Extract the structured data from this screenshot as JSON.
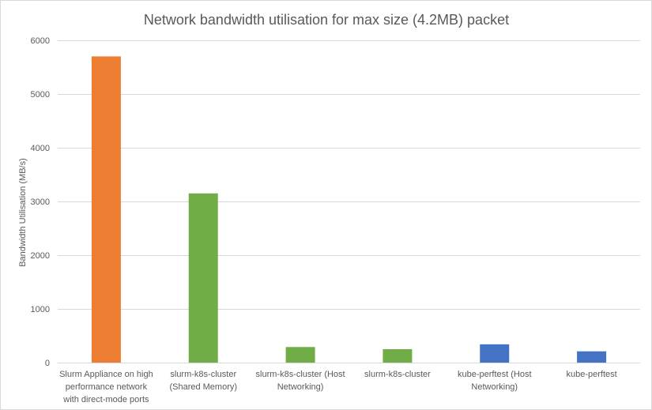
{
  "chart_data": {
    "type": "bar",
    "title": "Network bandwidth utilisation for max size (4.2MB) packet",
    "xlabel": "",
    "ylabel": "Bandwidth Utilisation (MB/s)",
    "ylim": [
      0,
      6000
    ],
    "yticks": [
      0,
      1000,
      2000,
      3000,
      4000,
      5000,
      6000
    ],
    "grid": true,
    "legend": "none",
    "categories": [
      [
        "Slurm Appliance on high",
        "performance network",
        "with direct-mode ports"
      ],
      [
        "slurm-k8s-cluster",
        "(Shared Memory)"
      ],
      [
        "slurm-k8s-cluster (Host",
        "Networking)"
      ],
      [
        "slurm-k8s-cluster"
      ],
      [
        "kube-perftest (Host",
        "Networking)"
      ],
      [
        "kube-perftest"
      ]
    ],
    "values": [
      5700,
      3150,
      290,
      250,
      340,
      210
    ],
    "colors": [
      "#ED7D31",
      "#70AD47",
      "#70AD47",
      "#70AD47",
      "#4472C4",
      "#4472C4"
    ]
  }
}
